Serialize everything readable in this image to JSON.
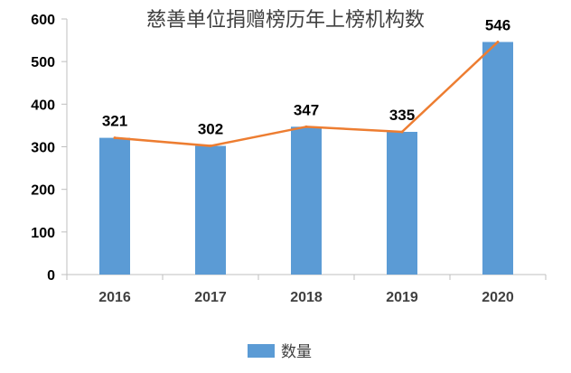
{
  "chart_data": {
    "type": "bar",
    "title": "慈善单位捐赠榜历年上榜机构数",
    "categories": [
      "2016",
      "2017",
      "2018",
      "2019",
      "2020"
    ],
    "series": [
      {
        "name": "数量",
        "values": [
          321,
          302,
          347,
          335,
          546
        ],
        "color": "#5B9BD5"
      }
    ],
    "line_overlay": {
      "values": [
        321,
        302,
        347,
        335,
        546
      ],
      "color": "#ED7D31"
    },
    "data_labels": [
      "321",
      "302",
      "347",
      "335",
      "546"
    ],
    "yticks": [
      "0",
      "100",
      "200",
      "300",
      "400",
      "500",
      "600"
    ],
    "ylim": [
      0,
      600
    ],
    "grid": false,
    "legend_position": "bottom",
    "xlabel": "",
    "ylabel": ""
  }
}
